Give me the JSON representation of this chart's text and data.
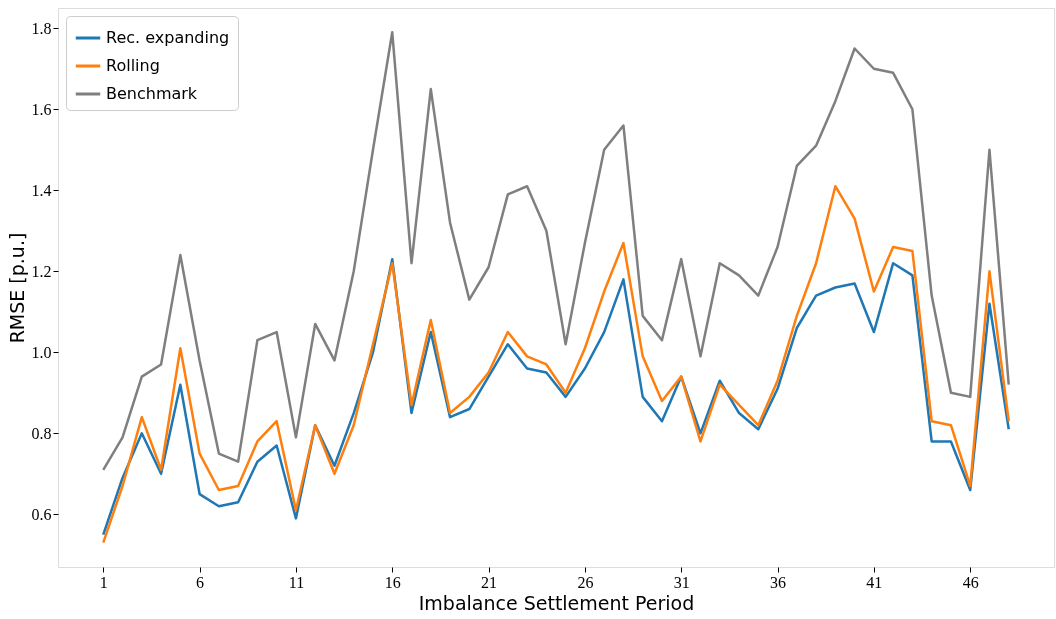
{
  "chart_data": {
    "type": "line",
    "xlabel": "Imbalance Settlement Period",
    "ylabel": "RMSE [p.u.]",
    "x": [
      1,
      2,
      3,
      4,
      5,
      6,
      7,
      8,
      9,
      10,
      11,
      12,
      13,
      14,
      15,
      16,
      17,
      18,
      19,
      20,
      21,
      22,
      23,
      24,
      25,
      26,
      27,
      28,
      29,
      30,
      31,
      32,
      33,
      34,
      35,
      36,
      37,
      38,
      39,
      40,
      41,
      42,
      43,
      44,
      45,
      46,
      47,
      48
    ],
    "series": [
      {
        "name": "Rec. expanding",
        "color": "#1f77b4",
        "values": [
          0.55,
          0.69,
          0.8,
          0.7,
          0.92,
          0.65,
          0.62,
          0.63,
          0.73,
          0.77,
          0.59,
          0.82,
          0.72,
          0.85,
          1.0,
          1.23,
          0.85,
          1.05,
          0.84,
          0.86,
          0.94,
          1.02,
          0.96,
          0.95,
          0.89,
          0.96,
          1.05,
          1.18,
          0.89,
          0.83,
          0.94,
          0.8,
          0.93,
          0.85,
          0.81,
          0.91,
          1.06,
          1.14,
          1.16,
          1.17,
          1.05,
          1.22,
          1.19,
          0.78,
          0.78,
          0.66,
          1.12,
          0.81
        ]
      },
      {
        "name": "Rolling",
        "color": "#ff7f0e",
        "values": [
          0.53,
          0.67,
          0.84,
          0.71,
          1.01,
          0.75,
          0.66,
          0.67,
          0.78,
          0.83,
          0.61,
          0.82,
          0.7,
          0.82,
          1.02,
          1.22,
          0.87,
          1.08,
          0.85,
          0.89,
          0.95,
          1.05,
          0.99,
          0.97,
          0.9,
          1.01,
          1.15,
          1.27,
          0.99,
          0.88,
          0.94,
          0.78,
          0.92,
          0.87,
          0.82,
          0.93,
          1.09,
          1.22,
          1.41,
          1.33,
          1.15,
          1.26,
          1.25,
          0.83,
          0.82,
          0.67,
          1.2,
          0.83
        ]
      },
      {
        "name": "Benchmark",
        "color": "#7f7f7f",
        "values": [
          0.71,
          0.79,
          0.94,
          0.97,
          1.24,
          0.98,
          0.75,
          0.73,
          1.03,
          1.05,
          0.79,
          1.07,
          0.98,
          1.2,
          1.5,
          1.79,
          1.22,
          1.65,
          1.32,
          1.13,
          1.21,
          1.39,
          1.41,
          1.3,
          1.02,
          1.27,
          1.5,
          1.56,
          1.09,
          1.03,
          1.23,
          0.99,
          1.22,
          1.19,
          1.14,
          1.26,
          1.46,
          1.51,
          1.62,
          1.75,
          1.7,
          1.69,
          1.6,
          1.14,
          0.9,
          0.89,
          1.5,
          0.92
        ]
      }
    ],
    "xlim": [
      -1.35,
      50.35
    ],
    "xticks": [
      1,
      6,
      11,
      16,
      21,
      26,
      31,
      36,
      41,
      46
    ],
    "ylim": [
      0.47,
      1.85
    ],
    "yticks": [
      0.6,
      0.8,
      {
        "value": 1,
        "label": "1.0"
      },
      1.2,
      1.4,
      1.6,
      1.8
    ],
    "grid": false,
    "legend": "top left",
    "line_style": "solid"
  }
}
